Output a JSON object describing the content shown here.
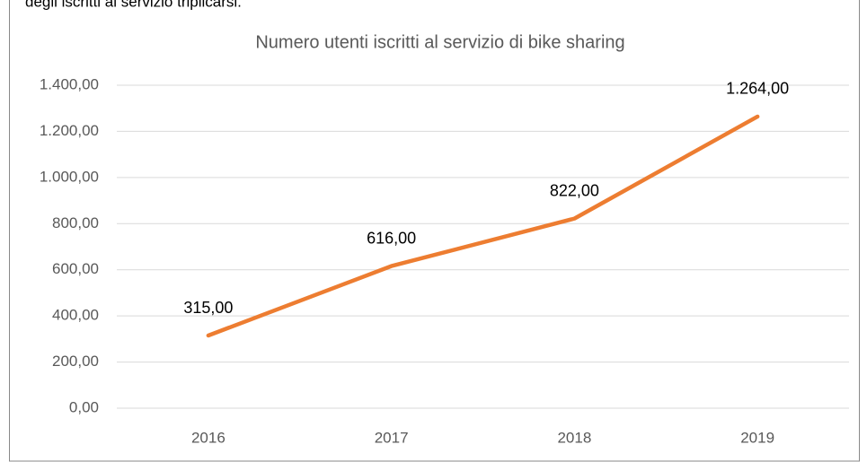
{
  "header_text": "degli iscritti al servizio triplicarsi.",
  "chart_data": {
    "type": "line",
    "title": "Numero utenti iscritti al servizio di bike sharing",
    "categories": [
      "2016",
      "2017",
      "2018",
      "2019"
    ],
    "series": [
      {
        "color": "#ed7d31",
        "values": [
          315,
          616,
          822,
          1264
        ],
        "value_labels": [
          "315,00",
          "616,00",
          "822,00",
          "1.264,00"
        ]
      }
    ],
    "ylim": [
      0,
      1400
    ],
    "yticks": [
      {
        "value": 0,
        "label": "0,00"
      },
      {
        "value": 200,
        "label": "200,00"
      },
      {
        "value": 400,
        "label": "400,00"
      },
      {
        "value": 600,
        "label": "600,00"
      },
      {
        "value": 800,
        "label": "800,00"
      },
      {
        "value": 1000,
        "label": "1.000,00"
      },
      {
        "value": 1200,
        "label": "1.200,00"
      },
      {
        "value": 1400,
        "label": "1.400,00"
      }
    ],
    "grid": true
  }
}
